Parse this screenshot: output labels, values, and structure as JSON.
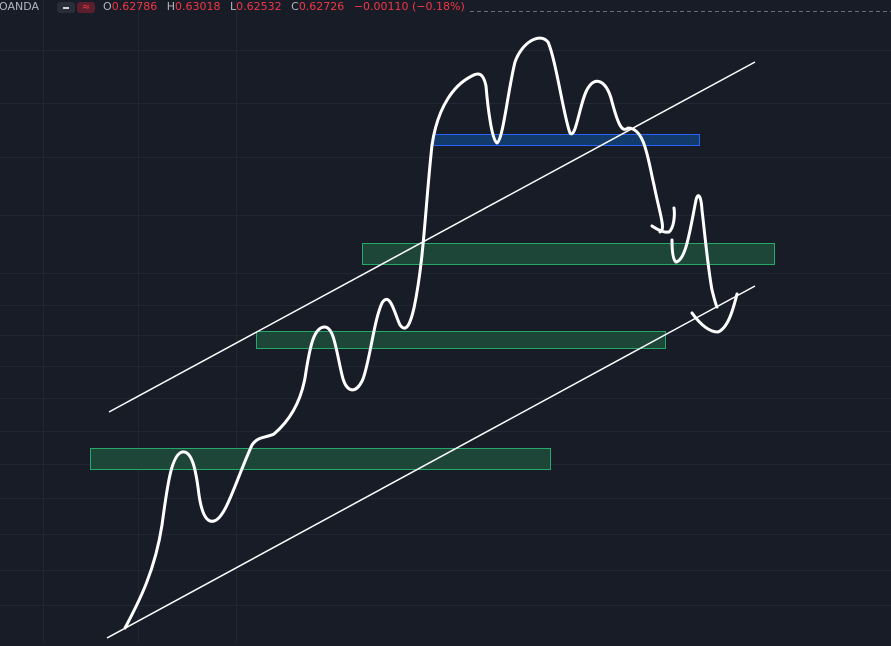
{
  "legend": {
    "broker": "OANDA",
    "indicator_icons": [
      "minus-icon",
      "wave-icon"
    ],
    "ohlc": [
      {
        "key": "O",
        "value": "0.62786"
      },
      {
        "key": "H",
        "value": "0.63018"
      },
      {
        "key": "L",
        "value": "0.62532"
      },
      {
        "key": "C",
        "value": "0.62726"
      }
    ],
    "change": "−0.00110 (−0.18%)"
  },
  "colors": {
    "background": "#181c27",
    "grid": "#222632",
    "crosshair": "#6a6e7a",
    "demand_zone_fill": "#1e4638",
    "demand_zone_border": "#25a96a",
    "supply_zone_fill": "#123a6b",
    "supply_zone_border": "#2962ff",
    "drawing": "#ffffff",
    "down_value": "#f23645",
    "label_text": "#b2b5be"
  }
}
